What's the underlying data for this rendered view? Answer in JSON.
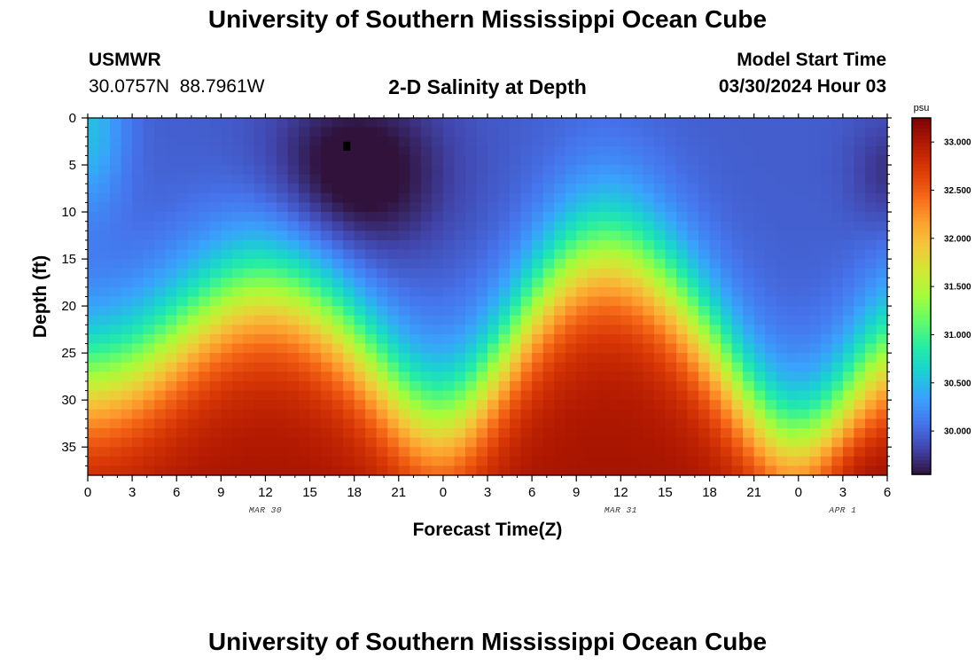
{
  "page_title": "University of Southern Mississippi Ocean Cube",
  "footer_title": "University of Southern Mississippi Ocean Cube",
  "station": {
    "name": "USMWR",
    "lat": "30.0757N",
    "lon": "88.7961W"
  },
  "plot_title": "2-D Salinity at Depth",
  "model_start": {
    "label": "Model Start Time",
    "value": "03/30/2024 Hour 03"
  },
  "colors": {
    "background": "#ffffff",
    "axis": "#000000",
    "marker": "#000000"
  },
  "chart_data": {
    "type": "heatmap",
    "title": "2-D Salinity at Depth",
    "xlabel": "Forecast Time(Z)",
    "ylabel": "Depth (ft)",
    "colorbar_label": "psu",
    "x_ticks": [
      "0",
      "3",
      "6",
      "9",
      "12",
      "15",
      "18",
      "21",
      "0",
      "3",
      "6",
      "9",
      "12",
      "15",
      "18",
      "21",
      "0",
      "3",
      "6"
    ],
    "x_range_hours": [
      0,
      54
    ],
    "date_labels": [
      {
        "text": "MAR 30",
        "hour": 12
      },
      {
        "text": "MAR 31",
        "hour": 36
      },
      {
        "text": "APR 1",
        "hour": 51
      }
    ],
    "y_ticks": [
      0,
      5,
      10,
      15,
      20,
      25,
      30,
      35
    ],
    "y_range_ft": [
      0,
      38
    ],
    "colorbar_ticks": [
      "33.000",
      "32.500",
      "32.000",
      "31.500",
      "31.000",
      "30.500",
      "30.000"
    ],
    "colorbar_range": [
      29.55,
      33.25
    ],
    "colormap": [
      "#30123b",
      "#4145ab",
      "#4675ed",
      "#39a2fc",
      "#1bcfd4",
      "#24eca6",
      "#61fc6c",
      "#a4fc3b",
      "#d1e834",
      "#f3c63a",
      "#fe9b2d",
      "#f36315",
      "#d93806",
      "#b11901",
      "#7a0403"
    ],
    "grid": {
      "time_steps": 72,
      "depth_steps": 38
    },
    "features": {
      "surface_min": {
        "hour": 17.5,
        "depth_ft": 5,
        "value": 29.6
      },
      "deep_max": {
        "hour": 51,
        "depth_ft": 37,
        "value": 33.15
      }
    },
    "marker": {
      "hour": 17.5,
      "depth_ft": 3
    }
  }
}
